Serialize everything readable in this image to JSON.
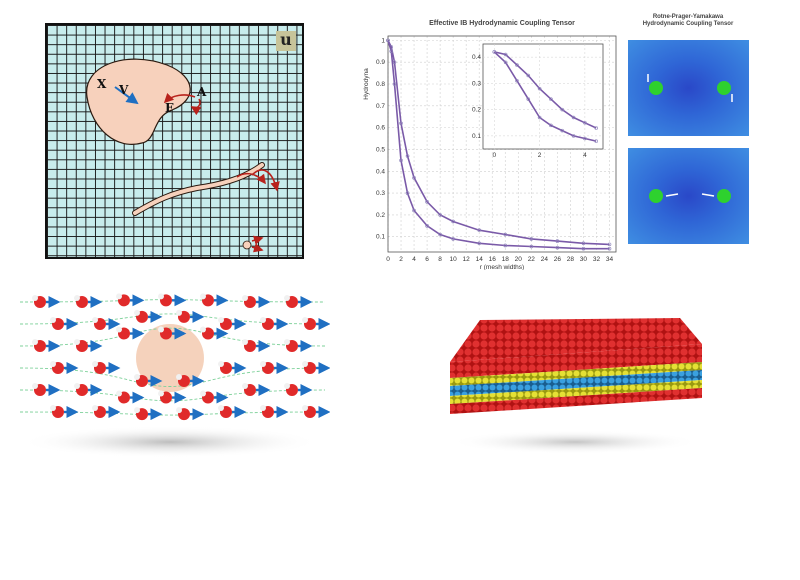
{
  "grid_panel": {
    "field_label": "u",
    "x_label": "X",
    "v_label": "V",
    "f_label": "F",
    "a_label": "A"
  },
  "chart": {
    "title": "Effective IB Hydrodynamic Coupling Tensor",
    "ylabel": "Hydrodyna",
    "xlabel": "r (mesh widths)",
    "xticks": [
      "0",
      "2",
      "4",
      "6",
      "8",
      "10",
      "12",
      "14",
      "16",
      "18",
      "20",
      "22",
      "24",
      "26",
      "28",
      "30",
      "32",
      "34"
    ],
    "yticks": [
      "1",
      "0.9",
      "0.8",
      "0.7",
      "0.6",
      "0.5",
      "0.4",
      "0.3",
      "0.2",
      "0.1"
    ],
    "inset_xticks": [
      "0",
      "2",
      "4"
    ],
    "inset_yticks": [
      "0.4",
      "0.3",
      "0.2",
      "0.1"
    ]
  },
  "chart_data": {
    "type": "line",
    "title": "Effective IB Hydrodynamic Coupling Tensor",
    "xlabel": "r (mesh widths)",
    "ylabel": "Hydrodyna",
    "xlim": [
      0,
      35
    ],
    "ylim": [
      0.03,
      1.02
    ],
    "series": [
      {
        "x": [
          0,
          0.5,
          1,
          2,
          3,
          4,
          6,
          8,
          10,
          14,
          18,
          22,
          26,
          30,
          34
        ],
        "values": [
          1.0,
          0.97,
          0.9,
          0.62,
          0.47,
          0.37,
          0.26,
          0.2,
          0.17,
          0.13,
          0.11,
          0.09,
          0.08,
          0.07,
          0.065
        ]
      },
      {
        "x": [
          0,
          0.5,
          1,
          2,
          3,
          4,
          6,
          8,
          10,
          14,
          18,
          22,
          26,
          30,
          34
        ],
        "values": [
          1.0,
          0.95,
          0.8,
          0.45,
          0.3,
          0.22,
          0.15,
          0.11,
          0.09,
          0.07,
          0.06,
          0.055,
          0.05,
          0.045,
          0.045
        ]
      }
    ],
    "inset": {
      "xlim": [
        -0.5,
        4.8
      ],
      "ylim": [
        0.05,
        0.45
      ],
      "series": [
        {
          "x": [
            0,
            0.5,
            1,
            1.5,
            2,
            2.5,
            3,
            3.5,
            4,
            4.5
          ],
          "values": [
            0.42,
            0.41,
            0.37,
            0.33,
            0.28,
            0.24,
            0.2,
            0.17,
            0.15,
            0.13
          ]
        },
        {
          "x": [
            0,
            0.5,
            1,
            1.5,
            2,
            2.5,
            3,
            3.5,
            4,
            4.5
          ],
          "values": [
            0.42,
            0.38,
            0.31,
            0.24,
            0.17,
            0.14,
            0.12,
            0.1,
            0.09,
            0.08
          ]
        }
      ]
    }
  },
  "heatmap_panel": {
    "title_line1": "Rotne-Prager-Yamakawa",
    "title_line2": "Hydrodynamic Coupling Tensor"
  },
  "colors": {
    "grid_bg": "#c8ecec",
    "body": "#f7d1bc",
    "arrow_red": "#b8221c",
    "arrow_blue": "#1f6fc2",
    "curve": "#7a5aa8",
    "heat": "#2f5fd0",
    "sphere": "#2ed12e"
  }
}
